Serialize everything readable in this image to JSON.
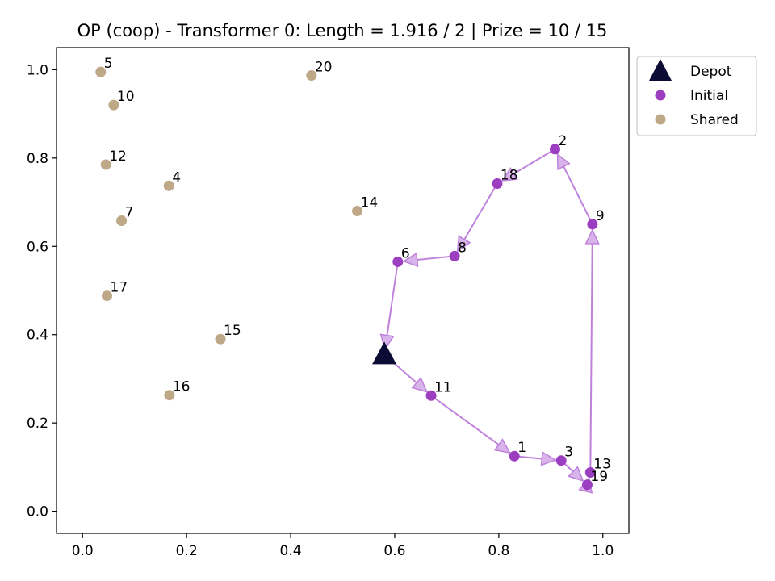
{
  "chart_data": {
    "type": "scatter",
    "title": "OP (coop) - Transformer 0: Length = 1.916 / 2 | Prize = 10 / 15",
    "xlabel": "",
    "ylabel": "",
    "xlim": [
      -0.05,
      1.05
    ],
    "ylim": [
      -0.05,
      1.05
    ],
    "xticks": [
      "0.0",
      "0.2",
      "0.4",
      "0.6",
      "0.8",
      "1.0"
    ],
    "yticks": [
      "0.0",
      "0.2",
      "0.4",
      "0.6",
      "0.8",
      "1.0"
    ],
    "grid": false,
    "legend_position": "outside-top-right",
    "legend": [
      {
        "label": "Depot",
        "marker": "triangle",
        "color": "#0b0c33"
      },
      {
        "label": "Initial",
        "marker": "circle",
        "color": "#9b3fc0"
      },
      {
        "label": "Shared",
        "marker": "circle",
        "color": "#bfa888"
      }
    ],
    "depot": {
      "x": 0.58,
      "y": 0.355
    },
    "initial": [
      {
        "id": "1",
        "x": 0.83,
        "y": 0.125
      },
      {
        "id": "2",
        "x": 0.908,
        "y": 0.82
      },
      {
        "id": "3",
        "x": 0.92,
        "y": 0.115
      },
      {
        "id": "6",
        "x": 0.606,
        "y": 0.565
      },
      {
        "id": "8",
        "x": 0.715,
        "y": 0.578
      },
      {
        "id": "9",
        "x": 0.98,
        "y": 0.65
      },
      {
        "id": "11",
        "x": 0.67,
        "y": 0.262
      },
      {
        "id": "13",
        "x": 0.976,
        "y": 0.088
      },
      {
        "id": "18",
        "x": 0.797,
        "y": 0.742
      },
      {
        "id": "19",
        "x": 0.97,
        "y": 0.06
      }
    ],
    "shared": [
      {
        "id": "4",
        "x": 0.166,
        "y": 0.737
      },
      {
        "id": "5",
        "x": 0.035,
        "y": 0.995
      },
      {
        "id": "7",
        "x": 0.075,
        "y": 0.658
      },
      {
        "id": "10",
        "x": 0.06,
        "y": 0.92
      },
      {
        "id": "12",
        "x": 0.045,
        "y": 0.785
      },
      {
        "id": "14",
        "x": 0.528,
        "y": 0.68
      },
      {
        "id": "15",
        "x": 0.265,
        "y": 0.39
      },
      {
        "id": "16",
        "x": 0.167,
        "y": 0.263
      },
      {
        "id": "17",
        "x": 0.047,
        "y": 0.488
      },
      {
        "id": "20",
        "x": 0.44,
        "y": 0.987
      }
    ],
    "route": [
      "depot",
      "11",
      "1",
      "3",
      "19",
      "13",
      "9",
      "2",
      "18",
      "8",
      "6",
      "depot"
    ],
    "route_color": "#bf82dc"
  }
}
